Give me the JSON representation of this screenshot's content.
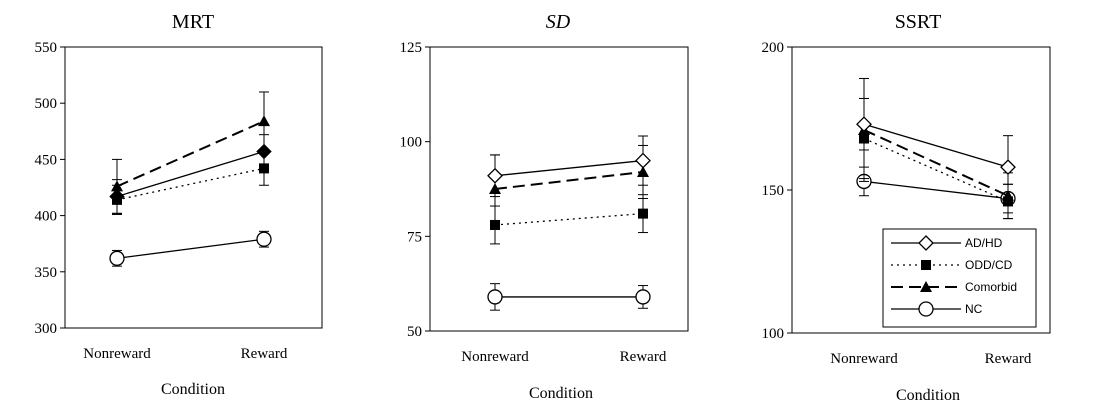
{
  "chart_data": [
    {
      "type": "line",
      "title": "MRT",
      "title_italic": false,
      "xlabel": "Condition",
      "ylabel": "",
      "categories": [
        "Nonreward",
        "Reward"
      ],
      "ylim": [
        300,
        550
      ],
      "yticks": [
        300,
        350,
        400,
        450,
        500,
        550
      ],
      "legend": null,
      "series": [
        {
          "name": "AD/HD",
          "values": [
            417,
            457
          ],
          "errors": [
            15,
            15
          ]
        },
        {
          "name": "ODD/CD",
          "values": [
            414,
            442
          ],
          "errors": [
            13,
            15
          ]
        },
        {
          "name": "Comorbid",
          "values": [
            426,
            484
          ],
          "errors": [
            24,
            26
          ]
        },
        {
          "name": "NC",
          "values": [
            362,
            379
          ],
          "errors": [
            7,
            7
          ]
        }
      ]
    },
    {
      "type": "line",
      "title": "SD",
      "title_italic": true,
      "xlabel": "Condition",
      "ylabel": "",
      "categories": [
        "Nonreward",
        "Reward"
      ],
      "ylim": [
        50,
        125
      ],
      "yticks": [
        50,
        75,
        100,
        125
      ],
      "legend": null,
      "series": [
        {
          "name": "AD/HD",
          "values": [
            91,
            95
          ],
          "errors": [
            5.5,
            6.5
          ]
        },
        {
          "name": "ODD/CD",
          "values": [
            78,
            81
          ],
          "errors": [
            5,
            5
          ]
        },
        {
          "name": "Comorbid",
          "values": [
            87.5,
            92
          ],
          "errors": [
            9,
            7
          ]
        },
        {
          "name": "NC",
          "values": [
            59,
            59
          ],
          "errors": [
            3.5,
            3
          ]
        }
      ]
    },
    {
      "type": "line",
      "title": "SSRT",
      "title_italic": false,
      "xlabel": "Condition",
      "ylabel": "",
      "categories": [
        "Nonreward",
        "Reward"
      ],
      "ylim": [
        100,
        200
      ],
      "yticks": [
        100,
        150,
        200
      ],
      "legend": "bottom-right",
      "series": [
        {
          "name": "AD/HD",
          "values": [
            173,
            158
          ],
          "errors": [
            9,
            11
          ]
        },
        {
          "name": "ODD/CD",
          "values": [
            168,
            146
          ],
          "errors": [
            14,
            6
          ]
        },
        {
          "name": "Comorbid",
          "values": [
            171,
            148
          ],
          "errors": [
            18,
            8
          ]
        },
        {
          "name": "NC",
          "values": [
            153,
            147
          ],
          "errors": [
            5,
            5
          ]
        }
      ]
    }
  ],
  "series_styles": [
    {
      "name": "AD/HD",
      "marker": "diamond-open",
      "dash": "solid",
      "color": "#000000"
    },
    {
      "name": "ODD/CD",
      "marker": "square-filled",
      "dash": "dotted",
      "color": "#000000"
    },
    {
      "name": "Comorbid",
      "marker": "triangle-filled",
      "dash": "dashed",
      "color": "#000000"
    },
    {
      "name": "NC",
      "marker": "circle-open",
      "dash": "solid",
      "color": "#000000"
    }
  ]
}
